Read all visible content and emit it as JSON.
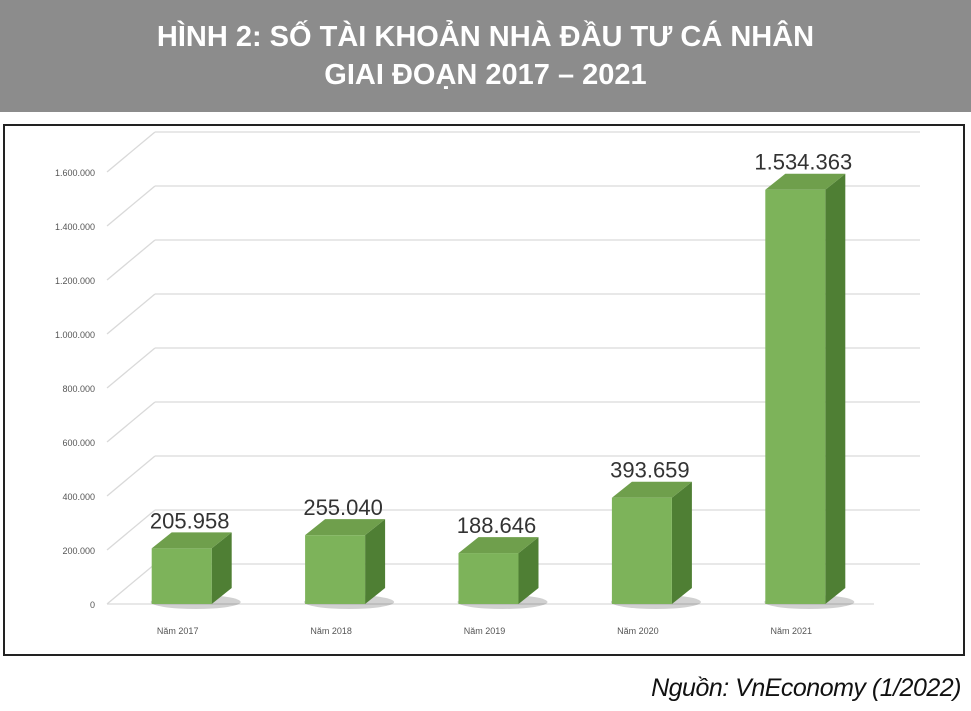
{
  "figure": {
    "title_line1": "HÌNH 2: SỐ TÀI KHOẢN NHÀ ĐẦU TƯ CÁ NHÂN",
    "title_line2": "GIAI ĐOẠN 2017 – 2021",
    "source": "Nguồn: VnEconomy (1/2022)"
  },
  "chart_data": {
    "type": "bar",
    "categories": [
      "Năm 2017",
      "Năm 2018",
      "Năm 2019",
      "Năm 2020",
      "Năm 2021"
    ],
    "values": [
      205958,
      255040,
      188646,
      393659,
      1534363
    ],
    "data_labels": [
      "205.958",
      "255.040",
      "188.646",
      "393.659",
      "1.534.363"
    ],
    "yticks": [
      0,
      200000,
      400000,
      600000,
      800000,
      1000000,
      1200000,
      1400000,
      1600000
    ],
    "ytick_labels": [
      "0",
      "200.000",
      "400.000",
      "600.000",
      "800.000",
      "1.000.000",
      "1.200.000",
      "1.400.000",
      "1.600.000"
    ],
    "ylim": [
      0,
      1600000
    ],
    "grid": true,
    "style": "3d-column",
    "colors": {
      "bar_front": "#7db35a",
      "bar_side": "#4f7f34",
      "bar_top": "#6f9f4c",
      "gridline": "#d9d9d9",
      "tick_text": "#555555",
      "label_text": "#333333"
    }
  }
}
